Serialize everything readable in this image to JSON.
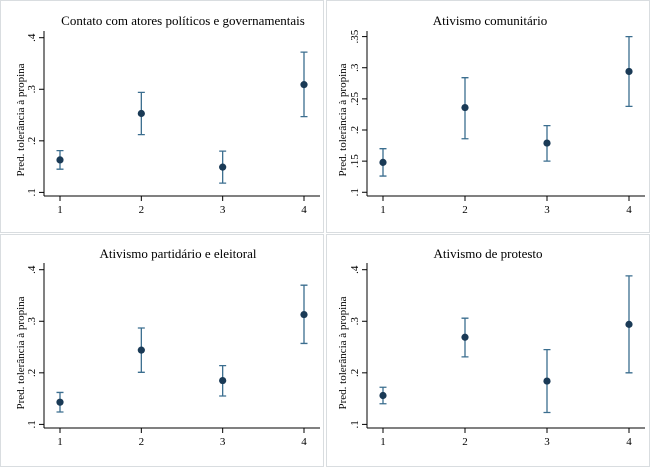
{
  "chart_data": [
    {
      "type": "scatter",
      "title": "Contato com atores políticos e governamentais",
      "xlabel": "",
      "ylabel": "Pred. tolerância à propina",
      "categories": [
        "1",
        "2",
        "3",
        "4"
      ],
      "values": [
        0.163,
        0.253,
        0.149,
        0.309
      ],
      "ci_low": [
        0.145,
        0.212,
        0.118,
        0.247
      ],
      "ci_high": [
        0.181,
        0.294,
        0.18,
        0.372
      ],
      "yticks": [
        ".1",
        ".2",
        ".3",
        ".4"
      ],
      "ytick_values": [
        0.1,
        0.2,
        0.3,
        0.4
      ],
      "ylim": [
        0.093,
        0.413
      ]
    },
    {
      "type": "scatter",
      "title": "Ativismo comunitário",
      "xlabel": "",
      "ylabel": "Pred. tolerância à propina",
      "categories": [
        "1",
        "2",
        "3",
        "4"
      ],
      "values": [
        0.148,
        0.236,
        0.179,
        0.294
      ],
      "ci_low": [
        0.126,
        0.186,
        0.15,
        0.238
      ],
      "ci_high": [
        0.17,
        0.284,
        0.207,
        0.35
      ],
      "yticks": [
        ".1",
        ".15",
        ".2",
        ".25",
        ".3",
        ".35"
      ],
      "ytick_values": [
        0.1,
        0.15,
        0.2,
        0.25,
        0.3,
        0.35
      ],
      "ylim": [
        0.094,
        0.359
      ]
    },
    {
      "type": "scatter",
      "title": "Ativismo partidário e eleitoral",
      "xlabel": "",
      "ylabel": "Pred. tolerância à propina",
      "categories": [
        "1",
        "2",
        "3",
        "4"
      ],
      "values": [
        0.143,
        0.244,
        0.185,
        0.313
      ],
      "ci_low": [
        0.124,
        0.201,
        0.155,
        0.257
      ],
      "ci_high": [
        0.162,
        0.287,
        0.214,
        0.37
      ],
      "yticks": [
        ".1",
        ".2",
        ".3",
        ".4"
      ],
      "ytick_values": [
        0.1,
        0.2,
        0.3,
        0.4
      ],
      "ylim": [
        0.093,
        0.413
      ]
    },
    {
      "type": "scatter",
      "title": "Ativismo de protesto",
      "xlabel": "",
      "ylabel": "Pred. tolerância à propina",
      "categories": [
        "1",
        "2",
        "3",
        "4"
      ],
      "values": [
        0.156,
        0.269,
        0.184,
        0.294
      ],
      "ci_low": [
        0.14,
        0.231,
        0.123,
        0.2
      ],
      "ci_high": [
        0.172,
        0.306,
        0.245,
        0.388
      ],
      "yticks": [
        ".1",
        ".2",
        ".3",
        ".4"
      ],
      "ytick_values": [
        0.1,
        0.2,
        0.3,
        0.4
      ],
      "ylim": [
        0.093,
        0.413
      ]
    }
  ],
  "colors": {
    "marker": "#1a3a56",
    "errorbar": "#3b6e8f",
    "panel_border": "#d9dde0"
  }
}
